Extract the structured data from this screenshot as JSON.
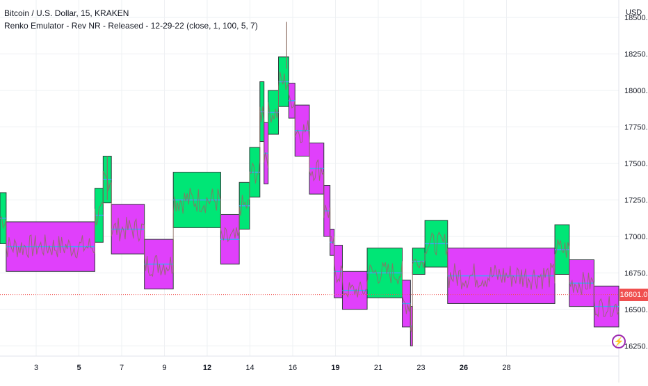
{
  "header": {
    "symbol_line": "Bitcoin / U.S. Dollar, 15, KRAKEN",
    "indicator_line": "Renko Emulator - Rev NR - Released - 12-29-22 (close, 1, 100, 5, 7)"
  },
  "axis": {
    "unit": "USD",
    "last_price_label": "16601.0"
  },
  "colors": {
    "bull": "#00e676",
    "bear": "#e040fb",
    "grid": "#eef0f3",
    "price_line": "#f0504f",
    "mid_line": "#42a5f5",
    "price_path": "#8d6e63"
  },
  "chart_data": {
    "type": "renko-candlestick",
    "x_ticks": [
      {
        "label": "3",
        "bold": false
      },
      {
        "label": "5",
        "bold": true
      },
      {
        "label": "7",
        "bold": false
      },
      {
        "label": "9",
        "bold": false
      },
      {
        "label": "12",
        "bold": true
      },
      {
        "label": "14",
        "bold": false
      },
      {
        "label": "16",
        "bold": false
      },
      {
        "label": "19",
        "bold": true
      },
      {
        "label": "21",
        "bold": false
      },
      {
        "label": "23",
        "bold": false
      },
      {
        "label": "26",
        "bold": true
      },
      {
        "label": "28",
        "bold": false
      }
    ],
    "y_ticks": [
      "16250.0",
      "16500.0",
      "16750.0",
      "17000.0",
      "17250.0",
      "17500.0",
      "17750.0",
      "18000.0",
      "18250.0",
      "18500.0"
    ],
    "ylim": [
      16180,
      18620
    ],
    "last_price": 16601,
    "bricks": [
      {
        "t0": 0.0,
        "t1": 0.3,
        "lo": 16950,
        "hi": 17300,
        "dir": "up"
      },
      {
        "t0": 0.3,
        "t1": 4.6,
        "lo": 16760,
        "hi": 17100,
        "dir": "down"
      },
      {
        "t0": 4.6,
        "t1": 5.0,
        "lo": 16960,
        "hi": 17330,
        "dir": "up"
      },
      {
        "t0": 5.0,
        "t1": 5.4,
        "lo": 17230,
        "hi": 17550,
        "dir": "up"
      },
      {
        "t0": 5.4,
        "t1": 7.0,
        "lo": 16880,
        "hi": 17220,
        "dir": "down"
      },
      {
        "t0": 7.0,
        "t1": 8.4,
        "lo": 16640,
        "hi": 16980,
        "dir": "down"
      },
      {
        "t0": 8.4,
        "t1": 10.7,
        "lo": 17060,
        "hi": 17440,
        "dir": "up"
      },
      {
        "t0": 10.7,
        "t1": 11.6,
        "lo": 16810,
        "hi": 17150,
        "dir": "down"
      },
      {
        "t0": 11.6,
        "t1": 12.1,
        "lo": 17050,
        "hi": 17370,
        "dir": "up"
      },
      {
        "t0": 12.1,
        "t1": 12.6,
        "lo": 17270,
        "hi": 17610,
        "dir": "up"
      },
      {
        "t0": 12.6,
        "t1": 12.8,
        "lo": 17650,
        "hi": 18060,
        "dir": "up"
      },
      {
        "t0": 12.8,
        "t1": 13.0,
        "lo": 17360,
        "hi": 17780,
        "dir": "down"
      },
      {
        "t0": 13.0,
        "t1": 13.5,
        "lo": 17700,
        "hi": 18000,
        "dir": "up"
      },
      {
        "t0": 13.5,
        "t1": 14.0,
        "lo": 17890,
        "hi": 18230,
        "dir": "up"
      },
      {
        "t0": 14.0,
        "t1": 14.3,
        "lo": 17810,
        "hi": 18050,
        "dir": "down"
      },
      {
        "t0": 14.3,
        "t1": 15.0,
        "lo": 17550,
        "hi": 17900,
        "dir": "down"
      },
      {
        "t0": 15.0,
        "t1": 15.7,
        "lo": 17290,
        "hi": 17640,
        "dir": "down"
      },
      {
        "t0": 15.7,
        "t1": 16.0,
        "lo": 17000,
        "hi": 17350,
        "dir": "down"
      },
      {
        "t0": 16.0,
        "t1": 16.2,
        "lo": 16870,
        "hi": 17050,
        "dir": "down"
      },
      {
        "t0": 16.2,
        "t1": 16.6,
        "lo": 16580,
        "hi": 16940,
        "dir": "down"
      },
      {
        "t0": 16.6,
        "t1": 17.8,
        "lo": 16500,
        "hi": 16760,
        "dir": "down"
      },
      {
        "t0": 17.8,
        "t1": 19.5,
        "lo": 16580,
        "hi": 16920,
        "dir": "up"
      },
      {
        "t0": 19.5,
        "t1": 19.9,
        "lo": 16380,
        "hi": 16700,
        "dir": "down"
      },
      {
        "t0": 19.9,
        "t1": 20.0,
        "lo": 16250,
        "hi": 16520,
        "dir": "down"
      },
      {
        "t0": 20.0,
        "t1": 20.6,
        "lo": 16740,
        "hi": 16920,
        "dir": "up"
      },
      {
        "t0": 20.6,
        "t1": 21.7,
        "lo": 16790,
        "hi": 17110,
        "dir": "up"
      },
      {
        "t0": 21.7,
        "t1": 26.9,
        "lo": 16540,
        "hi": 16920,
        "dir": "down"
      },
      {
        "t0": 26.9,
        "t1": 27.6,
        "lo": 16740,
        "hi": 17080,
        "dir": "up"
      },
      {
        "t0": 27.6,
        "t1": 28.8,
        "lo": 16520,
        "hi": 16840,
        "dir": "down"
      },
      {
        "t0": 28.8,
        "t1": 30.0,
        "lo": 16380,
        "hi": 16660,
        "dir": "down"
      }
    ]
  }
}
